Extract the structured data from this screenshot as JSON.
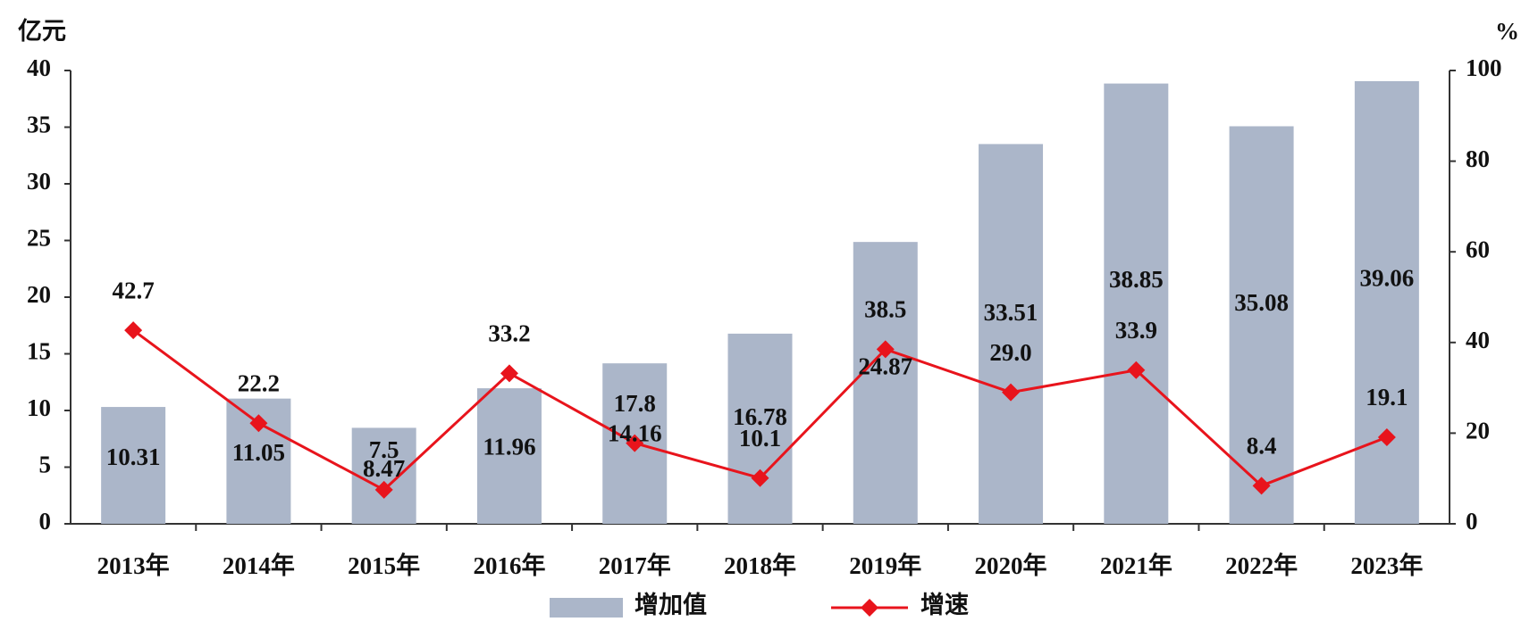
{
  "chart_data": {
    "type": "bar",
    "y_label": "亿元",
    "y2_label": "%",
    "categories": [
      "2013年",
      "2014年",
      "2015年",
      "2016年",
      "2017年",
      "2018年",
      "2019年",
      "2020年",
      "2021年",
      "2022年",
      "2023年"
    ],
    "series": [
      {
        "name": "增加值",
        "color": "#abb6c9",
        "values": [
          10.31,
          11.05,
          8.47,
          11.96,
          14.16,
          16.78,
          24.87,
          33.51,
          38.85,
          35.08,
          39.06
        ]
      },
      {
        "name": "增速",
        "type": "line",
        "axis": "y2",
        "color": "#e8141c",
        "values": [
          42.7,
          22.2,
          7.5,
          33.2,
          17.8,
          10.1,
          38.5,
          29,
          33.9,
          8.4,
          19.1
        ],
        "value_labels": [
          "42.7",
          "22.2",
          "7.5",
          "33.2",
          "17.8",
          "10.1",
          "38.5",
          "29.0",
          "33.9",
          "8.4",
          "19.1"
        ]
      }
    ],
    "ylim": [
      0,
      40
    ],
    "yticks": [
      0,
      5,
      10,
      15,
      20,
      25,
      30,
      35,
      40
    ],
    "y2lim": [
      0,
      100
    ],
    "y2ticks": [
      0,
      20,
      40,
      60,
      80,
      100
    ],
    "grid": false,
    "legend": "bottom"
  }
}
